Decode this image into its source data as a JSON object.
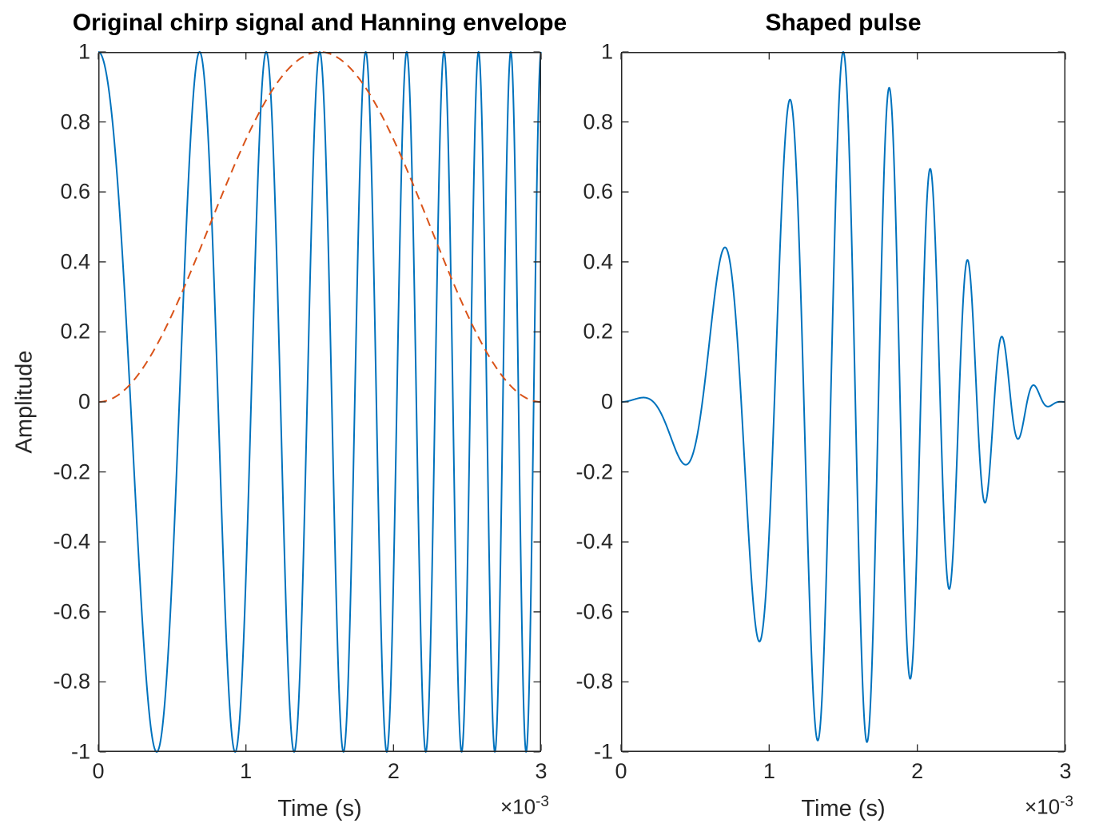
{
  "figure": {
    "background": "#ffffff",
    "axis_color": "#262626",
    "tick_label_color": "#262626",
    "title_color": "#000000"
  },
  "chart_data": [
    {
      "type": "line",
      "title": "Original chirp signal and Hanning envelope",
      "xlabel": "Time (s)",
      "ylabel": "Amplitude",
      "x_exponent": {
        "prefix": "×10",
        "exp": "-3"
      },
      "xlim": [
        0,
        0.003
      ],
      "ylim": [
        -1,
        1
      ],
      "grid": false,
      "box": true,
      "tick_direction": "in",
      "xticks": {
        "values": [
          0,
          0.001,
          0.002,
          0.003
        ],
        "labels": [
          "0",
          "1",
          "2",
          "3"
        ]
      },
      "yticks": {
        "values": [
          1,
          0.8,
          0.6,
          0.4,
          0.2,
          0,
          -0.2,
          -0.4,
          -0.6,
          -0.8,
          -1
        ],
        "labels": [
          "1",
          "0.8",
          "0.6",
          "0.4",
          "0.2",
          "0",
          "-0.2",
          "-0.4",
          "-0.6",
          "-0.8",
          "-1"
        ]
      },
      "series": [
        {
          "name": "Original chirp signal",
          "color": "#0072BD",
          "line_style": "solid",
          "line_width": 2,
          "generator": {
            "kind": "linear_chirp_cos",
            "f0_hz": 1000,
            "f1_hz": 5000,
            "duration_s": 0.003
          },
          "amplitude_range": [
            -1,
            1
          ],
          "peak_times_ms": [
            0,
            0.686,
            1.138,
            1.5,
            1.812,
            2.089,
            2.342,
            2.576,
            2.794,
            3.0
          ],
          "trough_times_ms": [
            0.396,
            0.927,
            1.327,
            1.662,
            1.954,
            2.217,
            2.461,
            2.688,
            2.899
          ]
        },
        {
          "name": "Hanning envelope",
          "color": "#D95319",
          "line_style": "dashed",
          "line_width": 2,
          "generator": {
            "kind": "hann_window",
            "duration_s": 0.003
          },
          "key_points_ms_value": [
            [
              0,
              0
            ],
            [
              0.75,
              0.5
            ],
            [
              1.5,
              1.0
            ],
            [
              2.25,
              0.5
            ],
            [
              3.0,
              0
            ]
          ]
        }
      ]
    },
    {
      "type": "line",
      "title": "Shaped pulse",
      "xlabel": "Time (s)",
      "ylabel": "",
      "x_exponent": {
        "prefix": "×10",
        "exp": "-3"
      },
      "xlim": [
        0,
        0.003
      ],
      "ylim": [
        -1,
        1
      ],
      "grid": false,
      "box": true,
      "tick_direction": "in",
      "xticks": {
        "values": [
          0,
          0.001,
          0.002,
          0.003
        ],
        "labels": [
          "0",
          "1",
          "2",
          "3"
        ]
      },
      "yticks": {
        "values": [
          1,
          0.8,
          0.6,
          0.4,
          0.2,
          0,
          -0.2,
          -0.4,
          -0.6,
          -0.8,
          -1
        ],
        "labels": [
          "1",
          "0.8",
          "0.6",
          "0.4",
          "0.2",
          "0",
          "-0.2",
          "-0.4",
          "-0.6",
          "-0.8",
          "-1"
        ]
      },
      "series": [
        {
          "name": "Shaped pulse",
          "color": "#0072BD",
          "line_style": "solid",
          "line_width": 2,
          "generator": {
            "kind": "chirp_times_hann",
            "f0_hz": 1000,
            "f1_hz": 5000,
            "duration_s": 0.003
          },
          "extrema_ms_value": [
            [
              0,
              0
            ],
            [
              0.396,
              -0.162
            ],
            [
              0.686,
              0.433
            ],
            [
              0.927,
              -0.681
            ],
            [
              1.138,
              0.862
            ],
            [
              1.327,
              -0.967
            ],
            [
              1.5,
              1.0
            ],
            [
              1.662,
              -0.971
            ],
            [
              1.812,
              0.9
            ],
            [
              1.954,
              -0.793
            ],
            [
              2.089,
              0.663
            ],
            [
              2.217,
              -0.535
            ],
            [
              2.342,
              0.404
            ],
            [
              2.461,
              -0.288
            ],
            [
              2.576,
              0.187
            ],
            [
              2.688,
              -0.105
            ],
            [
              2.794,
              0.046
            ],
            [
              2.899,
              -0.011
            ],
            [
              3.0,
              0
            ]
          ]
        }
      ]
    }
  ]
}
